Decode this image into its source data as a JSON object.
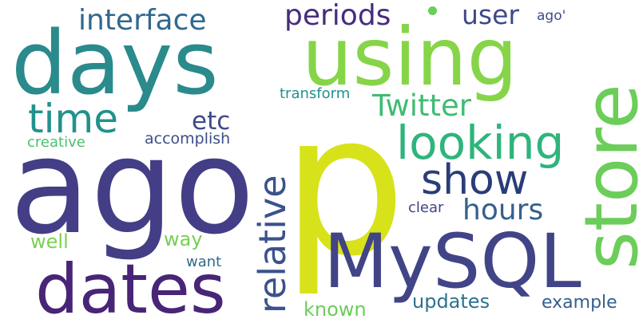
{
  "words": [
    {
      "text": "p",
      "color": "#d8e21a",
      "rotated": false
    },
    {
      "text": "ago",
      "color": "#433e85",
      "rotated": false
    },
    {
      "text": "days",
      "color": "#2a8a8c",
      "rotated": false
    },
    {
      "text": "using",
      "color": "#86d549",
      "rotated": false
    },
    {
      "text": "MySQL",
      "color": "#414487",
      "rotated": false
    },
    {
      "text": "dates",
      "color": "#482576",
      "rotated": false
    },
    {
      "text": "store",
      "color": "#6ccd5a",
      "rotated": true
    },
    {
      "text": "relative",
      "color": "#3b528b",
      "rotated": true
    },
    {
      "text": "looking",
      "color": "#2fb47c",
      "rotated": false
    },
    {
      "text": "time",
      "color": "#21918c",
      "rotated": false
    },
    {
      "text": "show",
      "color": "#2a3d7a",
      "rotated": false
    },
    {
      "text": "interface",
      "color": "#31688e",
      "rotated": false
    },
    {
      "text": "periods",
      "color": "#472d7b",
      "rotated": false
    },
    {
      "text": "Twitter",
      "color": "#3fbc73",
      "rotated": false
    },
    {
      "text": "user",
      "color": "#3e4989",
      "rotated": false
    },
    {
      "text": "hours",
      "color": "#35608d",
      "rotated": false
    },
    {
      "text": "etc",
      "color": "#3e4a89",
      "rotated": false
    },
    {
      "text": "updates",
      "color": "#2c728e",
      "rotated": false
    },
    {
      "text": "example",
      "color": "#355f8d",
      "rotated": false
    },
    {
      "text": "known",
      "color": "#6ccd5a",
      "rotated": false
    },
    {
      "text": "way",
      "color": "#75d054",
      "rotated": false
    },
    {
      "text": "well",
      "color": "#7ad151",
      "rotated": false
    },
    {
      "text": "creative",
      "color": "#4ac16d",
      "rotated": false
    },
    {
      "text": "accomplish",
      "color": "#3d4e8a",
      "rotated": false
    },
    {
      "text": "transform",
      "color": "#21918c",
      "rotated": false
    },
    {
      "text": "clear",
      "color": "#414487",
      "rotated": false
    },
    {
      "text": "want",
      "color": "#2f6b8e",
      "rotated": false
    },
    {
      "text": "ago'",
      "color": "#3e4c8a",
      "rotated": false
    }
  ],
  "dot_color": "#6ccd5a"
}
